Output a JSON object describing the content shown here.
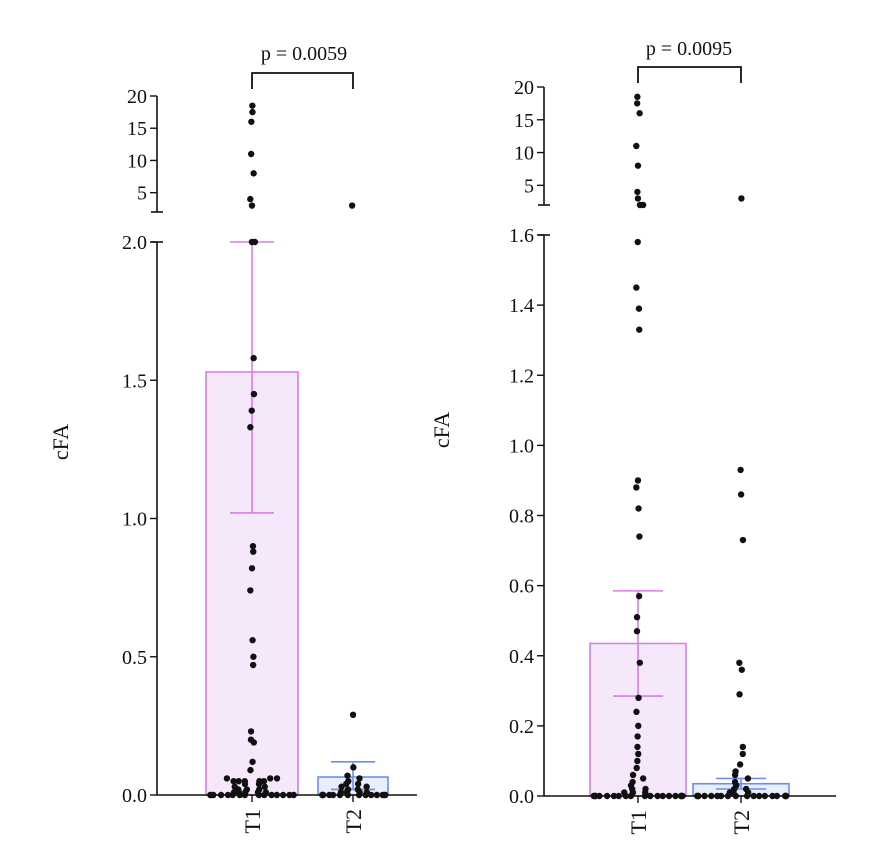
{
  "figure_note": "",
  "chart_data": [
    {
      "type": "bar",
      "panel": "left",
      "title": "",
      "ylabel": "cFA",
      "xlabel": "",
      "categories": [
        "T1",
        "T2"
      ],
      "bar_means": [
        1.53,
        0.065
      ],
      "error_bars": [
        [
          1.02,
          2.0
        ],
        [
          0.02,
          0.12
        ]
      ],
      "bar_colors": [
        "#d97de8",
        "#6a8ff0"
      ],
      "bar_fills": [
        "#f5e8fa",
        "#e9eefc"
      ],
      "p_value_label": "p = 0.0059",
      "ylim_lower": [
        0,
        2.0
      ],
      "ylim_upper": [
        2,
        20
      ],
      "y_ticks_lower": [
        0.0,
        0.5,
        1.0,
        1.5,
        2.0
      ],
      "y_tick_labels_lower": [
        "0.0",
        "0.5",
        "1.0",
        "1.5",
        "2.0"
      ],
      "y_ticks_upper": [
        5,
        10,
        15,
        20
      ],
      "y_tick_labels_upper": [
        "5",
        "10",
        "15",
        "20"
      ],
      "points": [
        {
          "group": "T1",
          "values": [
            0,
            0,
            0,
            0,
            0,
            0,
            0,
            0,
            0,
            0,
            0,
            0,
            0,
            0,
            0,
            0.01,
            0.01,
            0.01,
            0.01,
            0.01,
            0.02,
            0.02,
            0.02,
            0.03,
            0.03,
            0.04,
            0.04,
            0.05,
            0.05,
            0.05,
            0.05,
            0.05,
            0.06,
            0.06,
            0.06,
            0.09,
            0.12,
            0.19,
            0.2,
            0.23,
            0.47,
            0.5,
            0.56,
            0.74,
            0.82,
            0.88,
            0.9,
            1.33,
            1.39,
            1.45,
            1.58,
            2.0,
            2.0,
            3.0,
            4.0,
            8.0,
            11.0,
            16.0,
            17.5,
            18.5
          ]
        },
        {
          "group": "T2",
          "values": [
            0,
            0,
            0,
            0,
            0,
            0,
            0,
            0,
            0,
            0,
            0,
            0,
            0,
            0,
            0,
            0.01,
            0.01,
            0.01,
            0.01,
            0.02,
            0.02,
            0.03,
            0.03,
            0.04,
            0.04,
            0.05,
            0.06,
            0.07,
            0.1,
            0.29,
            3.0
          ]
        }
      ]
    },
    {
      "type": "bar",
      "panel": "right",
      "title": "",
      "ylabel": "cFA",
      "xlabel": "",
      "categories": [
        "T1",
        "T2"
      ],
      "bar_means": [
        0.435,
        0.035
      ],
      "error_bars": [
        [
          0.285,
          0.585
        ],
        [
          0.02,
          0.05
        ]
      ],
      "bar_colors": [
        "#d97de8",
        "#6a8ff0"
      ],
      "bar_fills": [
        "#f5e8fa",
        "#e9eefc"
      ],
      "p_value_label": "p = 0.0095",
      "ylim_lower": [
        0,
        1.6
      ],
      "ylim_upper": [
        2,
        20
      ],
      "y_ticks_lower": [
        0.0,
        0.2,
        0.4,
        0.6,
        0.8,
        1.0,
        1.2,
        1.4,
        1.6
      ],
      "y_tick_labels_lower": [
        "0.0",
        "0.2",
        "0.4",
        "0.6",
        "0.8",
        "1.0",
        "1.2",
        "1.4",
        "1.6"
      ],
      "y_ticks_upper": [
        5,
        10,
        15,
        20
      ],
      "y_tick_labels_upper": [
        "5",
        "10",
        "15",
        "20"
      ],
      "points": [
        {
          "group": "T1",
          "values": [
            0,
            0,
            0,
            0,
            0,
            0,
            0,
            0,
            0,
            0,
            0,
            0,
            0,
            0,
            0,
            0,
            0,
            0,
            0,
            0,
            0.01,
            0.01,
            0.01,
            0.02,
            0.02,
            0.03,
            0.04,
            0.05,
            0.06,
            0.08,
            0.1,
            0.12,
            0.14,
            0.17,
            0.2,
            0.24,
            0.28,
            0.38,
            0.47,
            0.51,
            0.57,
            0.74,
            0.82,
            0.88,
            0.9,
            1.33,
            1.39,
            1.45,
            1.58,
            2.0,
            2.0,
            3.0,
            4.0,
            8.0,
            11.0,
            16.0,
            17.5,
            18.5
          ]
        },
        {
          "group": "T2",
          "values": [
            0,
            0,
            0,
            0,
            0,
            0,
            0,
            0,
            0,
            0,
            0,
            0,
            0,
            0,
            0,
            0,
            0,
            0,
            0,
            0,
            0.01,
            0.01,
            0.01,
            0.02,
            0.02,
            0.03,
            0.04,
            0.05,
            0.06,
            0.07,
            0.09,
            0.12,
            0.14,
            0.29,
            0.36,
            0.38,
            0.73,
            0.86,
            0.93,
            3.0
          ]
        }
      ]
    }
  ]
}
